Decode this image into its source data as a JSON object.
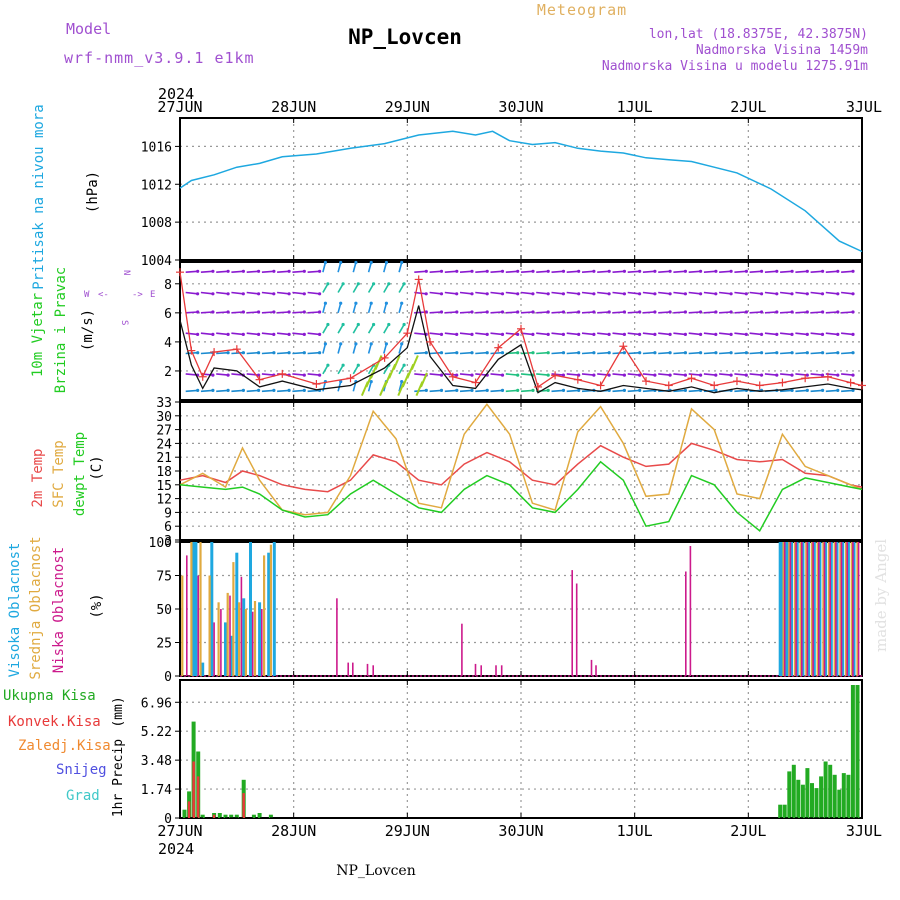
{
  "header": {
    "model_label": "Model",
    "model_name": "wrf-nmm_v3.9.1 e1km",
    "station": "NP_Lovcen",
    "meteogram": "Meteogram",
    "lonlat": "lon,lat (18.8375E, 42.3875N)",
    "elevation": "Nadmorska Visina 1459m",
    "model_elevation": "Nadmorska Visina u modelu 1275.91m",
    "year_top": "2024",
    "year_bottom": "2024",
    "footer_station": "NP_Lovcen",
    "credit": "made by Angel"
  },
  "colors": {
    "pressure": "#1ea8e0",
    "wind_speed": "#111111",
    "wind_gust": "#e83a3a",
    "temp_2m": "#e84a4a",
    "temp_sfc": "#e0aa40",
    "dewpoint": "#22cc22",
    "cloud_high": "#1ea8e0",
    "cloud_mid": "#e0aa40",
    "cloud_low": "#cc1a8c",
    "precip_total": "#22aa22",
    "precip_conv": "#e83a3a",
    "precip_strat": "#f08a30",
    "snow": "#5050e0",
    "graupel": "#40c8c8",
    "model_label": "#a050d0",
    "meteogram": "#e0b060"
  },
  "chart_data": [
    {
      "type": "line",
      "panel": "pressure",
      "ylabel": "Pritisak na nivou mora",
      "unit": "(hPa)",
      "ylim": [
        1004,
        1019
      ],
      "yticks": [
        "1004",
        "1008",
        "1012",
        "1016"
      ],
      "x_days": [
        "27JUN",
        "28JUN",
        "29JUN",
        "30JUN",
        "1JUL",
        "2JUL",
        "3JUL"
      ],
      "grid": true,
      "series": [
        {
          "key": "pressure",
          "x": [
            0,
            0.1,
            0.3,
            0.5,
            0.7,
            0.9,
            1.2,
            1.5,
            1.8,
            2.1,
            2.4,
            2.6,
            2.75,
            2.9,
            3.1,
            3.3,
            3.5,
            3.7,
            3.9,
            4.1,
            4.3,
            4.5,
            4.7,
            4.9,
            5.2,
            5.5,
            5.8,
            6.0
          ],
          "y": [
            1011.6,
            1012.4,
            1013.0,
            1013.8,
            1014.2,
            1014.9,
            1015.2,
            1015.8,
            1016.3,
            1017.2,
            1017.6,
            1017.2,
            1017.6,
            1016.6,
            1016.2,
            1016.4,
            1015.8,
            1015.5,
            1015.3,
            1014.8,
            1014.6,
            1014.4,
            1013.8,
            1013.2,
            1011.5,
            1009.2,
            1006.0,
            1004.9
          ]
        }
      ]
    },
    {
      "type": "line",
      "panel": "wind",
      "ylabel_1": "10m Vjetar",
      "ylabel_2": "Brzina i Pravac",
      "unit": "(m/s)",
      "compass": [
        "N",
        "W",
        "E",
        "S",
        "<-",
        "->"
      ],
      "ylim": [
        0,
        9.5
      ],
      "yticks": [
        "2",
        "4",
        "6",
        "8"
      ],
      "x_days": [
        "27JUN",
        "28JUN",
        "29JUN",
        "30JUN",
        "1JUL",
        "2JUL",
        "3JUL"
      ],
      "grid": true,
      "series": [
        {
          "key": "speed",
          "x": [
            0,
            0.1,
            0.2,
            0.3,
            0.5,
            0.7,
            0.9,
            1.2,
            1.5,
            1.8,
            2.0,
            2.1,
            2.2,
            2.4,
            2.6,
            2.8,
            3.0,
            3.15,
            3.3,
            3.5,
            3.7,
            3.9,
            4.1,
            4.3,
            4.5,
            4.7,
            4.9,
            5.1,
            5.3,
            5.5,
            5.7,
            5.9,
            6.0
          ],
          "y": [
            5.5,
            2.4,
            0.8,
            2.2,
            2.0,
            0.9,
            1.3,
            0.7,
            1.0,
            2.2,
            3.6,
            6.5,
            3.0,
            1.0,
            0.8,
            2.8,
            3.8,
            0.5,
            1.2,
            0.8,
            0.6,
            1.0,
            0.8,
            0.6,
            0.9,
            0.5,
            0.8,
            0.6,
            0.7,
            0.9,
            1.1,
            0.8,
            0.7
          ]
        },
        {
          "key": "gust",
          "x": [
            0,
            0.1,
            0.2,
            0.3,
            0.5,
            0.7,
            0.9,
            1.2,
            1.5,
            1.8,
            2.0,
            2.1,
            2.2,
            2.4,
            2.6,
            2.8,
            3.0,
            3.15,
            3.3,
            3.5,
            3.7,
            3.9,
            4.1,
            4.3,
            4.5,
            4.7,
            4.9,
            5.1,
            5.3,
            5.5,
            5.7,
            5.9,
            6.0
          ],
          "y": [
            8.8,
            3.4,
            1.6,
            3.3,
            3.5,
            1.4,
            1.8,
            1.1,
            1.5,
            2.9,
            4.6,
            8.3,
            4.0,
            1.6,
            1.2,
            3.6,
            4.9,
            0.9,
            1.7,
            1.4,
            1.0,
            3.7,
            1.3,
            1.0,
            1.5,
            1.0,
            1.3,
            1.0,
            1.2,
            1.5,
            1.6,
            1.2,
            1.0
          ]
        }
      ]
    },
    {
      "type": "line",
      "panel": "temperature",
      "ylabel_1": "2m Temp",
      "ylabel_2": "SFC Temp",
      "ylabel_3": "dewpt Temp",
      "unit": "(C)",
      "ylim": [
        3,
        33
      ],
      "yticks": [
        "3",
        "6",
        "9",
        "12",
        "15",
        "18",
        "21",
        "24",
        "27",
        "30",
        "33"
      ],
      "x_days": [
        "27JUN",
        "28JUN",
        "29JUN",
        "30JUN",
        "1JUL",
        "2JUL",
        "3JUL"
      ],
      "grid": true,
      "series": [
        {
          "key": "temp_2m",
          "x": [
            0,
            0.2,
            0.4,
            0.55,
            0.7,
            0.9,
            1.1,
            1.3,
            1.5,
            1.7,
            1.9,
            2.1,
            2.3,
            2.5,
            2.7,
            2.9,
            3.1,
            3.3,
            3.5,
            3.7,
            3.9,
            4.1,
            4.3,
            4.5,
            4.7,
            4.9,
            5.1,
            5.3,
            5.5,
            5.7,
            5.9,
            6.0
          ],
          "y": [
            16.0,
            17.0,
            15.5,
            18.0,
            17.0,
            15.0,
            14.0,
            13.5,
            16.0,
            21.5,
            20.0,
            16.0,
            15.0,
            19.5,
            22.0,
            20.0,
            16.0,
            15.0,
            19.5,
            23.5,
            21.0,
            19.0,
            19.5,
            24.0,
            22.5,
            20.5,
            20.0,
            20.5,
            17.5,
            17.0,
            15.0,
            14.5
          ]
        },
        {
          "key": "temp_sfc",
          "x": [
            0,
            0.2,
            0.4,
            0.55,
            0.7,
            0.9,
            1.1,
            1.3,
            1.5,
            1.7,
            1.9,
            2.1,
            2.3,
            2.5,
            2.7,
            2.9,
            3.1,
            3.3,
            3.5,
            3.7,
            3.9,
            4.1,
            4.3,
            4.5,
            4.7,
            4.9,
            5.1,
            5.3,
            5.5,
            5.7,
            5.9,
            6.0
          ],
          "y": [
            15.0,
            17.5,
            14.5,
            23.0,
            16.0,
            9.5,
            8.5,
            9.0,
            17.0,
            31.0,
            25.0,
            11.0,
            10.0,
            26.0,
            32.5,
            26.0,
            11.0,
            9.5,
            26.5,
            32.0,
            24.0,
            12.5,
            13.0,
            31.5,
            27.0,
            13.0,
            12.0,
            26.0,
            19.0,
            17.0,
            15.0,
            14.0
          ]
        },
        {
          "key": "dewpoint",
          "x": [
            0,
            0.2,
            0.4,
            0.55,
            0.7,
            0.9,
            1.1,
            1.3,
            1.5,
            1.7,
            1.9,
            2.1,
            2.3,
            2.5,
            2.7,
            2.9,
            3.1,
            3.3,
            3.5,
            3.7,
            3.9,
            4.1,
            4.3,
            4.5,
            4.7,
            4.9,
            5.1,
            5.3,
            5.5,
            5.7,
            5.9,
            6.0
          ],
          "y": [
            15.0,
            14.5,
            14.0,
            14.5,
            13.0,
            9.5,
            8.0,
            8.5,
            13.0,
            16.0,
            13.0,
            10.0,
            9.0,
            14.0,
            17.0,
            15.0,
            10.0,
            9.0,
            14.0,
            20.0,
            16.0,
            6.0,
            7.0,
            17.0,
            15.0,
            9.0,
            5.0,
            14.0,
            16.5,
            15.5,
            14.5,
            14.0
          ]
        }
      ]
    },
    {
      "type": "bar",
      "panel": "clouds",
      "ylabel_1": "Visoka Oblacnost",
      "ylabel_2": "Srednja Oblacnost",
      "ylabel_3": "Niska Oblacnost",
      "unit": "(%)",
      "ylim": [
        0,
        100
      ],
      "yticks": [
        "0",
        "25",
        "50",
        "75",
        "100"
      ],
      "x_days": [
        "27JUN",
        "28JUN",
        "29JUN",
        "30JUN",
        "1JUL",
        "2JUL",
        "3JUL"
      ],
      "grid": true,
      "high": {
        "x": [
          0.12,
          0.14,
          0.2,
          0.28,
          0.4,
          0.45,
          0.5,
          0.56,
          0.62,
          0.7,
          0.78,
          0.83,
          5.28,
          5.3,
          5.33,
          5.35,
          5.38,
          5.43,
          5.48,
          5.53,
          5.58,
          5.63,
          5.68,
          5.73,
          5.78,
          5.83,
          5.88,
          5.93
        ],
        "y": [
          100,
          100,
          10,
          100,
          40,
          30,
          92,
          58,
          100,
          55,
          92,
          100,
          100,
          100,
          100,
          100,
          100,
          100,
          100,
          100,
          100,
          100,
          100,
          100,
          100,
          100,
          100,
          100
        ]
      },
      "mid": {
        "x": [
          0.02,
          0.1,
          0.18,
          0.26,
          0.34,
          0.42,
          0.47,
          0.52,
          0.58,
          0.66,
          0.74,
          0.8,
          5.31,
          5.36,
          5.41,
          5.46,
          5.51,
          5.56,
          5.61,
          5.66,
          5.71,
          5.76,
          5.81,
          5.86,
          5.91,
          5.96
        ],
        "y": [
          75,
          100,
          100,
          75,
          55,
          62,
          85,
          55,
          50,
          56,
          90,
          98,
          100,
          100,
          100,
          100,
          100,
          100,
          100,
          100,
          100,
          100,
          100,
          100,
          100,
          100
        ]
      },
      "low": {
        "x": [
          0.06,
          0.16,
          0.3,
          0.36,
          0.44,
          0.54,
          0.64,
          0.72,
          1.38,
          1.48,
          1.52,
          1.65,
          1.7,
          2.48,
          2.6,
          2.65,
          2.78,
          2.83,
          3.45,
          3.49,
          3.62,
          3.66,
          4.45,
          4.49,
          5.32,
          5.37,
          5.42,
          5.47,
          5.52,
          5.57,
          5.62,
          5.67,
          5.72,
          5.77,
          5.82,
          5.87,
          5.92,
          5.97
        ],
        "y": [
          90,
          75,
          40,
          50,
          60,
          74,
          48,
          50,
          58,
          10,
          10,
          9,
          8,
          39,
          9,
          8,
          8,
          8,
          79,
          69,
          12,
          8,
          78,
          97,
          100,
          100,
          100,
          100,
          100,
          100,
          100,
          100,
          100,
          100,
          100,
          100,
          100,
          100
        ]
      }
    },
    {
      "type": "bar",
      "panel": "precipitation",
      "legend": [
        "Ukupna Kisa",
        "Konvek.Kisa",
        "Zaledj.Kisa",
        "Snijeg",
        "Grad"
      ],
      "ylabel": "1hr Precip",
      "unit": "(mm)",
      "ylim": [
        0,
        8.3
      ],
      "yticks": [
        "0",
        "1.74",
        "3.48",
        "5.22",
        "6.96"
      ],
      "x_days": [
        "27JUN",
        "28JUN",
        "29JUN",
        "30JUN",
        "1JUL",
        "2JUL",
        "3JUL"
      ],
      "grid": true,
      "total": {
        "x": [
          0.04,
          0.08,
          0.12,
          0.16,
          0.2,
          0.3,
          0.35,
          0.4,
          0.45,
          0.5,
          0.56,
          0.65,
          0.7,
          0.8,
          5.28,
          5.32,
          5.36,
          5.4,
          5.44,
          5.48,
          5.52,
          5.56,
          5.6,
          5.64,
          5.68,
          5.72,
          5.76,
          5.8,
          5.84,
          5.88,
          5.92,
          5.96
        ],
        "y": [
          0.5,
          1.6,
          5.8,
          4.0,
          0.2,
          0.3,
          0.3,
          0.2,
          0.2,
          0.2,
          2.3,
          0.2,
          0.3,
          0.2,
          0.8,
          0.8,
          2.8,
          3.2,
          2.3,
          2.0,
          3.0,
          2.1,
          1.8,
          2.5,
          3.4,
          3.2,
          2.6,
          1.7,
          2.7,
          2.6,
          8.0,
          8.0
        ]
      },
      "convective": {
        "x": [
          0.08,
          0.12,
          0.16,
          0.3,
          0.56
        ],
        "y": [
          1.0,
          3.4,
          2.5,
          0.2,
          1.5
        ]
      }
    }
  ]
}
